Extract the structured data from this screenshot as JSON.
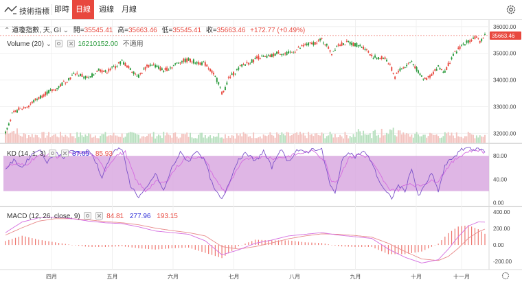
{
  "toolbar": {
    "indicator_label": "技術指標",
    "tabs": [
      {
        "label": "即時",
        "active": false
      },
      {
        "label": "日線",
        "active": true
      },
      {
        "label": "週線",
        "active": false
      },
      {
        "label": "月線",
        "active": false
      }
    ]
  },
  "header": {
    "symbol": "道瓊指數, 天, GI",
    "open_label": "開=",
    "open": "35545.41",
    "high_label": "高=",
    "high": "35663.46",
    "low_label": "低=",
    "low": "35545.41",
    "close_label": "收=",
    "close": "35663.46",
    "change": "+172.77 (+0.49%)"
  },
  "volume_legend": {
    "label": "Volume (20)",
    "value": "16210152.00",
    "status": "不適用"
  },
  "kd_legend": {
    "label": "KD (14, 1, 3)",
    "k": "87.09",
    "d": "85.93"
  },
  "macd_legend": {
    "label": "MACD (12, 26, close, 9)",
    "hist": "84.81",
    "macd": "277.96",
    "signal": "193.15"
  },
  "colors": {
    "up": "#e8483e",
    "down": "#2a9a3c",
    "kd_k": "#7b52c9",
    "kd_d": "#d46be0",
    "kd_band": "#d9a9e0",
    "macd_line": "#d46be0",
    "signal_line": "#e88a8a",
    "last_price_bg": "#e8483e"
  },
  "chart_data": [
    {
      "type": "candlestick",
      "title": "道瓊指數, 天, GI",
      "x_ticks": [
        "四月",
        "五月",
        "六月",
        "七月",
        "八月",
        "九月",
        "十月",
        "十一月"
      ],
      "y_ticks": [
        32000,
        33000,
        34000,
        35000,
        36000
      ],
      "ylim": [
        31650,
        36200
      ],
      "last_price": "35663.46",
      "close_path": [
        [
          0,
          32050
        ],
        [
          4,
          32700
        ],
        [
          8,
          32900
        ],
        [
          14,
          33050
        ],
        [
          18,
          33250
        ],
        [
          24,
          33500
        ],
        [
          30,
          33650
        ],
        [
          36,
          33950
        ],
        [
          42,
          34250
        ],
        [
          50,
          34050
        ],
        [
          56,
          34400
        ],
        [
          60,
          34300
        ],
        [
          66,
          34500
        ],
        [
          70,
          34700
        ],
        [
          75,
          34400
        ],
        [
          80,
          34150
        ],
        [
          84,
          34450
        ],
        [
          88,
          34600
        ],
        [
          95,
          34350
        ],
        [
          100,
          34500
        ],
        [
          105,
          34700
        ],
        [
          110,
          34750
        ],
        [
          116,
          34650
        ],
        [
          120,
          34600
        ],
        [
          124,
          34300
        ],
        [
          128,
          33900
        ],
        [
          130,
          33500
        ],
        [
          132,
          33700
        ],
        [
          134,
          34050
        ],
        [
          138,
          34300
        ],
        [
          142,
          34550
        ],
        [
          148,
          34700
        ],
        [
          152,
          34850
        ],
        [
          156,
          34850
        ],
        [
          160,
          34900
        ],
        [
          164,
          35050
        ],
        [
          168,
          34950
        ],
        [
          174,
          35100
        ],
        [
          180,
          35300
        ],
        [
          186,
          35400
        ],
        [
          190,
          35500
        ],
        [
          193,
          35300
        ],
        [
          196,
          35000
        ],
        [
          199,
          35300
        ],
        [
          202,
          35350
        ],
        [
          206,
          35400
        ],
        [
          212,
          35300
        ],
        [
          216,
          35200
        ],
        [
          220,
          34900
        ],
        [
          224,
          34800
        ],
        [
          228,
          34850
        ],
        [
          232,
          34400
        ],
        [
          234,
          34100
        ],
        [
          236,
          34350
        ],
        [
          240,
          34500
        ],
        [
          244,
          34700
        ],
        [
          248,
          34300
        ],
        [
          252,
          34000
        ],
        [
          256,
          34200
        ],
        [
          260,
          34500
        ],
        [
          264,
          34300
        ],
        [
          266,
          34600
        ],
        [
          270,
          35000
        ],
        [
          274,
          35300
        ],
        [
          278,
          35450
        ],
        [
          282,
          35600
        ],
        [
          285,
          35450
        ],
        [
          288,
          35663
        ]
      ],
      "volume": {
        "label": "Volume (20)",
        "value": 16210152.0
      }
    },
    {
      "type": "line",
      "title": "KD (14, 1, 3)",
      "y_ticks": [
        0.0,
        40.0,
        80.0
      ],
      "ylim": [
        -5,
        100
      ],
      "band": [
        20,
        80
      ],
      "k_last": 87.09,
      "d_last": 85.93,
      "k_path": [
        [
          0,
          58
        ],
        [
          5,
          72
        ],
        [
          10,
          60
        ],
        [
          15,
          80
        ],
        [
          20,
          92
        ],
        [
          25,
          70
        ],
        [
          30,
          85
        ],
        [
          35,
          78
        ],
        [
          40,
          90
        ],
        [
          45,
          82
        ],
        [
          50,
          92
        ],
        [
          55,
          65
        ],
        [
          58,
          40
        ],
        [
          60,
          60
        ],
        [
          65,
          90
        ],
        [
          70,
          92
        ],
        [
          75,
          30
        ],
        [
          80,
          10
        ],
        [
          85,
          25
        ],
        [
          90,
          50
        ],
        [
          95,
          20
        ],
        [
          100,
          60
        ],
        [
          105,
          85
        ],
        [
          110,
          70
        ],
        [
          115,
          90
        ],
        [
          120,
          70
        ],
        [
          125,
          25
        ],
        [
          130,
          5
        ],
        [
          135,
          40
        ],
        [
          140,
          75
        ],
        [
          145,
          85
        ],
        [
          150,
          70
        ],
        [
          155,
          88
        ],
        [
          160,
          60
        ],
        [
          165,
          92
        ],
        [
          170,
          70
        ],
        [
          175,
          90
        ],
        [
          180,
          85
        ],
        [
          185,
          92
        ],
        [
          190,
          90
        ],
        [
          195,
          30
        ],
        [
          198,
          15
        ],
        [
          202,
          70
        ],
        [
          206,
          88
        ],
        [
          210,
          78
        ],
        [
          215,
          88
        ],
        [
          220,
          70
        ],
        [
          224,
          40
        ],
        [
          228,
          20
        ],
        [
          232,
          8
        ],
        [
          236,
          30
        ],
        [
          240,
          20
        ],
        [
          244,
          60
        ],
        [
          248,
          10
        ],
        [
          252,
          30
        ],
        [
          256,
          50
        ],
        [
          260,
          20
        ],
        [
          264,
          62
        ],
        [
          266,
          70
        ],
        [
          270,
          80
        ],
        [
          274,
          90
        ],
        [
          278,
          95
        ],
        [
          282,
          90
        ],
        [
          285,
          92
        ],
        [
          288,
          87.09
        ]
      ],
      "d_path": [
        [
          0,
          62
        ],
        [
          6,
          66
        ],
        [
          12,
          64
        ],
        [
          18,
          78
        ],
        [
          24,
          82
        ],
        [
          30,
          78
        ],
        [
          36,
          82
        ],
        [
          42,
          84
        ],
        [
          48,
          86
        ],
        [
          54,
          78
        ],
        [
          60,
          56
        ],
        [
          66,
          80
        ],
        [
          72,
          86
        ],
        [
          78,
          40
        ],
        [
          84,
          20
        ],
        [
          90,
          36
        ],
        [
          96,
          34
        ],
        [
          102,
          58
        ],
        [
          108,
          76
        ],
        [
          114,
          78
        ],
        [
          120,
          74
        ],
        [
          126,
          40
        ],
        [
          132,
          18
        ],
        [
          138,
          50
        ],
        [
          144,
          76
        ],
        [
          150,
          78
        ],
        [
          156,
          78
        ],
        [
          162,
          76
        ],
        [
          168,
          78
        ],
        [
          174,
          82
        ],
        [
          180,
          86
        ],
        [
          186,
          88
        ],
        [
          192,
          70
        ],
        [
          196,
          36
        ],
        [
          200,
          40
        ],
        [
          206,
          76
        ],
        [
          212,
          82
        ],
        [
          218,
          78
        ],
        [
          224,
          52
        ],
        [
          230,
          24
        ],
        [
          236,
          22
        ],
        [
          242,
          34
        ],
        [
          248,
          28
        ],
        [
          254,
          36
        ],
        [
          260,
          38
        ],
        [
          266,
          62
        ],
        [
          272,
          78
        ],
        [
          278,
          88
        ],
        [
          284,
          90
        ],
        [
          288,
          85.93
        ]
      ]
    },
    {
      "type": "line",
      "title": "MACD (12, 26, close, 9)",
      "y_ticks": [
        -200.0,
        0.0,
        200.0,
        400.0
      ],
      "ylim": [
        -300,
        460
      ],
      "hist_last": 84.81,
      "macd_last": 277.96,
      "signal_last": 193.15,
      "macd_path": [
        [
          0,
          150
        ],
        [
          10,
          280
        ],
        [
          20,
          330
        ],
        [
          30,
          340
        ],
        [
          40,
          320
        ],
        [
          50,
          290
        ],
        [
          60,
          270
        ],
        [
          70,
          260
        ],
        [
          80,
          220
        ],
        [
          90,
          170
        ],
        [
          100,
          150
        ],
        [
          110,
          130
        ],
        [
          120,
          50
        ],
        [
          130,
          -120
        ],
        [
          140,
          -60
        ],
        [
          150,
          20
        ],
        [
          160,
          60
        ],
        [
          170,
          110
        ],
        [
          180,
          130
        ],
        [
          190,
          150
        ],
        [
          200,
          120
        ],
        [
          210,
          100
        ],
        [
          220,
          80
        ],
        [
          230,
          -50
        ],
        [
          240,
          -150
        ],
        [
          250,
          -220
        ],
        [
          260,
          -180
        ],
        [
          266,
          -50
        ],
        [
          272,
          100
        ],
        [
          278,
          230
        ],
        [
          284,
          280
        ],
        [
          288,
          277.96
        ]
      ],
      "signal_path": [
        [
          0,
          120
        ],
        [
          10,
          210
        ],
        [
          20,
          290
        ],
        [
          30,
          320
        ],
        [
          40,
          320
        ],
        [
          50,
          305
        ],
        [
          60,
          285
        ],
        [
          70,
          270
        ],
        [
          80,
          245
        ],
        [
          90,
          205
        ],
        [
          100,
          175
        ],
        [
          110,
          150
        ],
        [
          120,
          110
        ],
        [
          130,
          -20
        ],
        [
          140,
          -50
        ],
        [
          150,
          -20
        ],
        [
          160,
          25
        ],
        [
          170,
          75
        ],
        [
          180,
          110
        ],
        [
          190,
          135
        ],
        [
          200,
          130
        ],
        [
          210,
          115
        ],
        [
          220,
          95
        ],
        [
          230,
          20
        ],
        [
          240,
          -80
        ],
        [
          250,
          -170
        ],
        [
          260,
          -190
        ],
        [
          266,
          -140
        ],
        [
          272,
          -40
        ],
        [
          278,
          80
        ],
        [
          284,
          160
        ],
        [
          288,
          193.15
        ]
      ]
    }
  ]
}
